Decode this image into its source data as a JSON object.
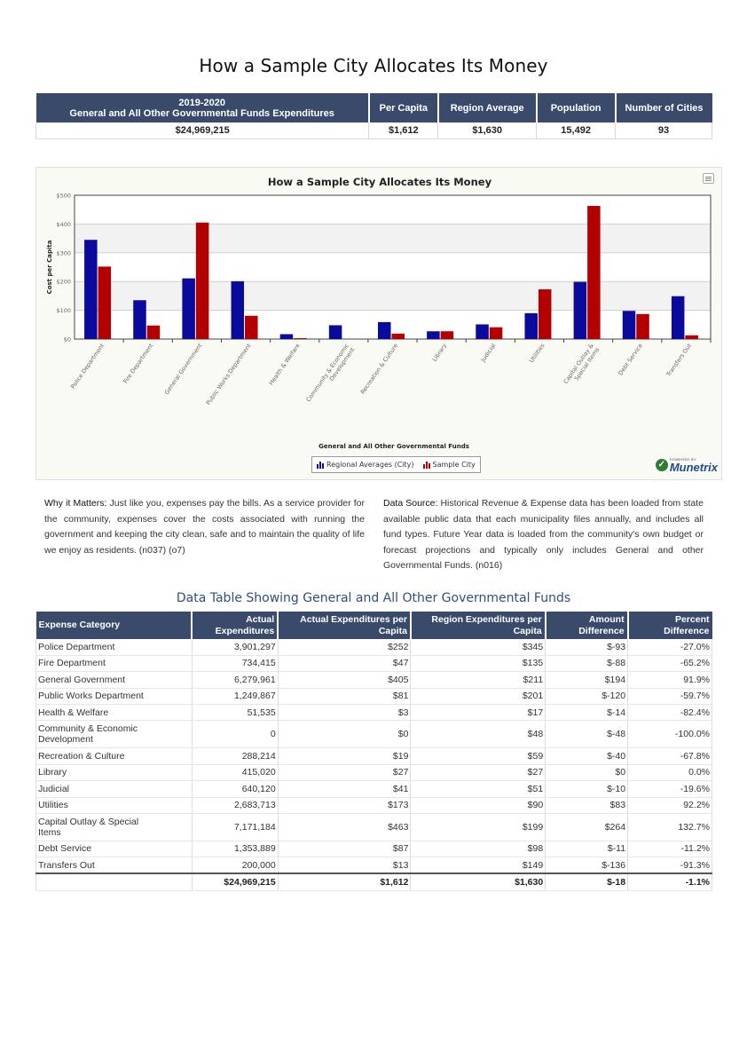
{
  "title": "How a Sample City Allocates Its Money",
  "summary": {
    "headers": {
      "expend_line1": "2019-2020",
      "expend_line2": "General and All Other Governmental Funds Expenditures",
      "per_capita": "Per Capita",
      "region_average": "Region Average",
      "population": "Population",
      "number_of_cities": "Number of Cities"
    },
    "values": {
      "expenditures": "$24,969,215",
      "per_capita": "$1,612",
      "region_average": "$1,630",
      "population": "15,492",
      "number_of_cities": "93"
    }
  },
  "chart_data": {
    "type": "bar",
    "title": "How a Sample City Allocates Its Money",
    "xlabel": "General and All Other Governmental Funds",
    "ylabel": "Cost per Capita",
    "ylim": [
      0,
      500
    ],
    "yticks": [
      0,
      100,
      200,
      300,
      400,
      500
    ],
    "ytick_labels": [
      "$0",
      "$100",
      "$200",
      "$300",
      "$400",
      "$500"
    ],
    "grid": true,
    "legend_position": "bottom",
    "categories": [
      "Police Department",
      "Fire Department",
      "General Government",
      "Public Works Department",
      "Health & Welfare",
      "Community & Economic Development",
      "Recreation & Culture",
      "Library",
      "Judicial",
      "Utilities",
      "Capital Outlay & Special Items",
      "Debt Service",
      "Transfers Out"
    ],
    "series": [
      {
        "name": "Regional Averages (City)",
        "color": "#0a0a9c",
        "values": [
          345,
          135,
          211,
          201,
          17,
          48,
          59,
          27,
          51,
          90,
          199,
          98,
          149
        ]
      },
      {
        "name": "Sample City",
        "color": "#b30000",
        "values": [
          252,
          47,
          405,
          81,
          3,
          0,
          19,
          27,
          41,
          173,
          463,
          87,
          13
        ]
      }
    ]
  },
  "chart_ui": {
    "menu_icon": "hamburger-menu-icon",
    "legend_icon": "bar-chart-icon",
    "logo_powered": "POWERED BY",
    "logo_name": "Munetrix",
    "logo_icon": "checkmark-shield-icon"
  },
  "why": {
    "lead": "Why it Matters:",
    "text": " Just like you, expenses pay the bills. As a service provider for the community, expenses cover the costs associated with running the government and keeping the city clean, safe and to maintain the quality of life we enjoy as residents. (n037) (o7)"
  },
  "source": {
    "lead": "Data Source:",
    "text": " Historical Revenue & Expense data has been loaded from state available public data that each municipality files annually, and includes all fund types. Future Year data is loaded from the community's own budget or forecast projections and typically only includes General and other Governmental Funds. (n016)"
  },
  "table": {
    "title": "Data Table Showing General and All Other Governmental Funds",
    "headers": {
      "category": "Expense Category",
      "actual_1": "Actual",
      "actual_2": "Expenditures",
      "per_capita_1": "Actual Expenditures per",
      "per_capita_2": "Capita",
      "region_1": "Region Expenditures per",
      "region_2": "Capita",
      "amount_1": "Amount",
      "amount_2": "Difference",
      "percent_1": "Percent",
      "percent_2": "Difference"
    },
    "rows": [
      {
        "category": "Police Department",
        "actual": "3,901,297",
        "per_capita": "$252",
        "region": "$345",
        "amount": "$-93",
        "percent": "-27.0%"
      },
      {
        "category": "Fire Department",
        "actual": "734,415",
        "per_capita": "$47",
        "region": "$135",
        "amount": "$-88",
        "percent": "-65.2%"
      },
      {
        "category": "General Government",
        "actual": "6,279,961",
        "per_capita": "$405",
        "region": "$211",
        "amount": "$194",
        "percent": "91.9%"
      },
      {
        "category": "Public Works Department",
        "actual": "1,249,867",
        "per_capita": "$81",
        "region": "$201",
        "amount": "$-120",
        "percent": "-59.7%"
      },
      {
        "category": "Health & Welfare",
        "actual": "51,535",
        "per_capita": "$3",
        "region": "$17",
        "amount": "$-14",
        "percent": "-82.4%"
      },
      {
        "category": "Community & Economic Development",
        "actual": "0",
        "per_capita": "$0",
        "region": "$48",
        "amount": "$-48",
        "percent": "-100.0%"
      },
      {
        "category": "Recreation & Culture",
        "actual": "288,214",
        "per_capita": "$19",
        "region": "$59",
        "amount": "$-40",
        "percent": "-67.8%"
      },
      {
        "category": "Library",
        "actual": "415,020",
        "per_capita": "$27",
        "region": "$27",
        "amount": "$0",
        "percent": "0.0%"
      },
      {
        "category": "Judicial",
        "actual": "640,120",
        "per_capita": "$41",
        "region": "$51",
        "amount": "$-10",
        "percent": "-19.6%"
      },
      {
        "category": "Utilities",
        "actual": "2,683,713",
        "per_capita": "$173",
        "region": "$90",
        "amount": "$83",
        "percent": "92.2%"
      },
      {
        "category": "Capital Outlay & Special Items",
        "actual": "7,171,184",
        "per_capita": "$463",
        "region": "$199",
        "amount": "$264",
        "percent": "132.7%"
      },
      {
        "category": "Debt Service",
        "actual": "1,353,889",
        "per_capita": "$87",
        "region": "$98",
        "amount": "$-11",
        "percent": "-11.2%"
      },
      {
        "category": "Transfers Out",
        "actual": "200,000",
        "per_capita": "$13",
        "region": "$149",
        "amount": "$-136",
        "percent": "-91.3%"
      }
    ],
    "total": {
      "category": "",
      "actual": "$24,969,215",
      "per_capita": "$1,612",
      "region": "$1,630",
      "amount": "$-18",
      "percent": "-1.1%"
    }
  }
}
